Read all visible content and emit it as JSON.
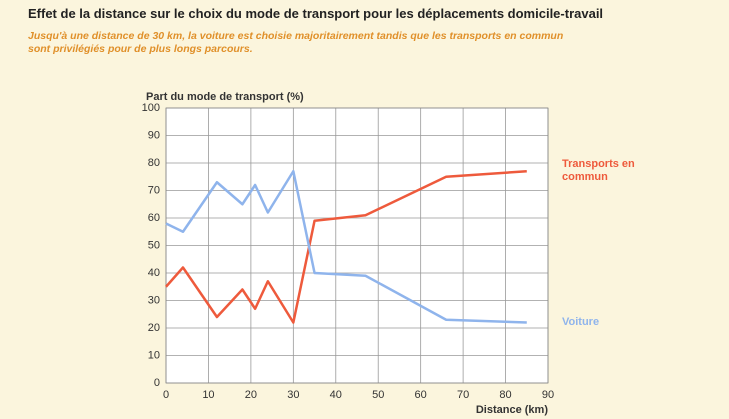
{
  "chart_data": {
    "type": "line",
    "title": "Effet de la distance sur le choix du mode de transport pour les déplacements domicile-travail",
    "subtitle": "Jusqu'à une distance de 30 km, la voiture est choisie majoritairement tandis que les transports en commun sont privilégiés pour de plus longs parcours.",
    "ylabel": "Part du mode de transport (%)",
    "xlabel": "Distance (km)",
    "x": [
      0,
      4,
      12,
      18,
      21,
      24,
      30,
      35,
      47,
      66,
      85
    ],
    "series": [
      {
        "name": "Transports en commun",
        "color": "#ee5a3c",
        "values": [
          35,
          42,
          24,
          34,
          27,
          37,
          22,
          59,
          61,
          75,
          77
        ]
      },
      {
        "name": "Voiture",
        "color": "#8fb4ec",
        "values": [
          58,
          55,
          73,
          65,
          72,
          62,
          77,
          40,
          39,
          23,
          22
        ]
      }
    ],
    "xlim": [
      0,
      90
    ],
    "xticks": [
      0,
      10,
      20,
      30,
      40,
      50,
      60,
      70,
      80,
      90
    ],
    "ylim": [
      0,
      100
    ],
    "yticks": [
      0,
      10,
      20,
      30,
      40,
      50,
      60,
      70,
      80,
      90,
      100
    ],
    "grid": true
  }
}
